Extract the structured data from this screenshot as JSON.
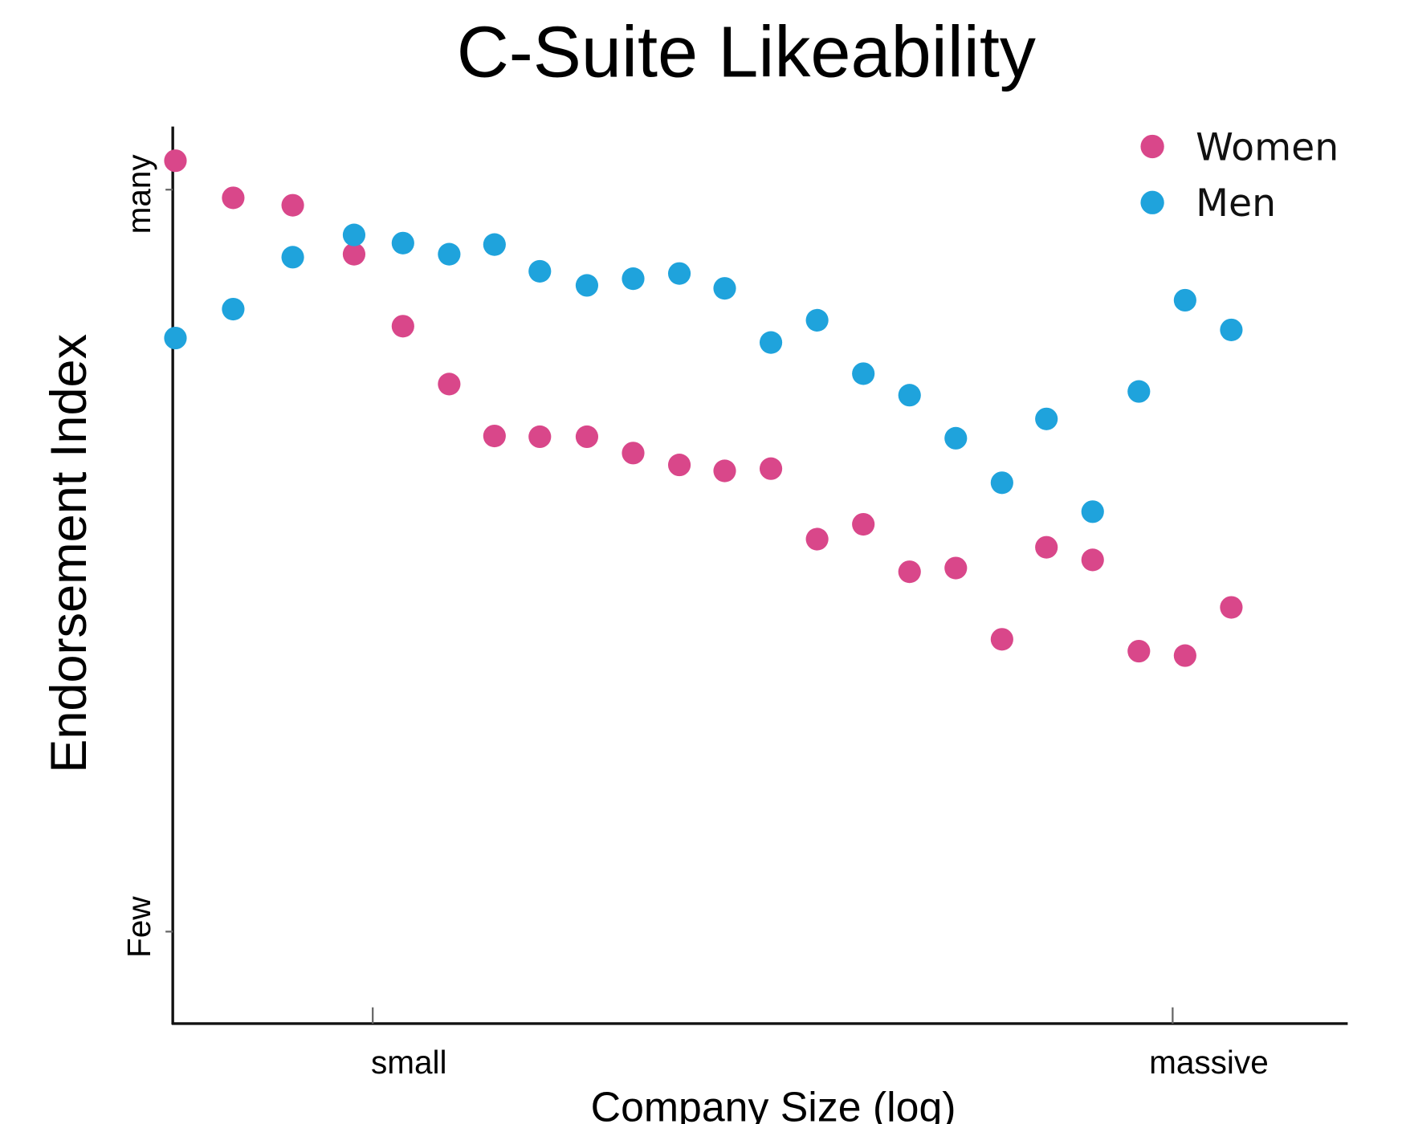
{
  "chart_data": {
    "type": "scatter",
    "title": "C-Suite Likeability",
    "xlabel": "Company Size (log)",
    "ylabel": "Endorsement Index",
    "xlim": [
      -1.25,
      11.97
    ],
    "ylim": [
      -1.24,
      10.85
    ],
    "x_ticks": [
      {
        "value": 1,
        "label": "small"
      },
      {
        "value": 10,
        "label": "massive"
      }
    ],
    "y_ticks": [
      {
        "value": 0,
        "label": "Few"
      },
      {
        "value": 10,
        "label": "many"
      }
    ],
    "grid": false,
    "legend_position": "top-right",
    "x": [
      -1.22,
      -0.57,
      0.1,
      0.79,
      1.34,
      1.86,
      2.37,
      2.88,
      3.41,
      3.93,
      4.45,
      4.96,
      5.48,
      6.0,
      6.52,
      7.04,
      7.56,
      8.08,
      8.58,
      9.1,
      9.62,
      10.14,
      10.66
    ],
    "series": [
      {
        "name": "Women",
        "color": "#d9478a",
        "values": [
          10.39,
          9.89,
          9.79,
          9.13,
          8.16,
          7.38,
          6.68,
          6.67,
          6.67,
          6.45,
          6.29,
          6.21,
          6.24,
          5.29,
          5.49,
          4.85,
          4.9,
          3.94,
          5.18,
          5.01,
          3.78,
          3.72,
          4.37
        ]
      },
      {
        "name": "Men",
        "color": "#1fa3dc",
        "values": [
          8.0,
          8.39,
          9.09,
          9.39,
          9.28,
          9.13,
          9.26,
          8.9,
          8.71,
          8.8,
          8.87,
          8.67,
          7.94,
          8.24,
          7.52,
          7.23,
          6.65,
          6.05,
          6.91,
          5.66,
          7.28,
          8.51,
          8.11
        ]
      }
    ]
  }
}
